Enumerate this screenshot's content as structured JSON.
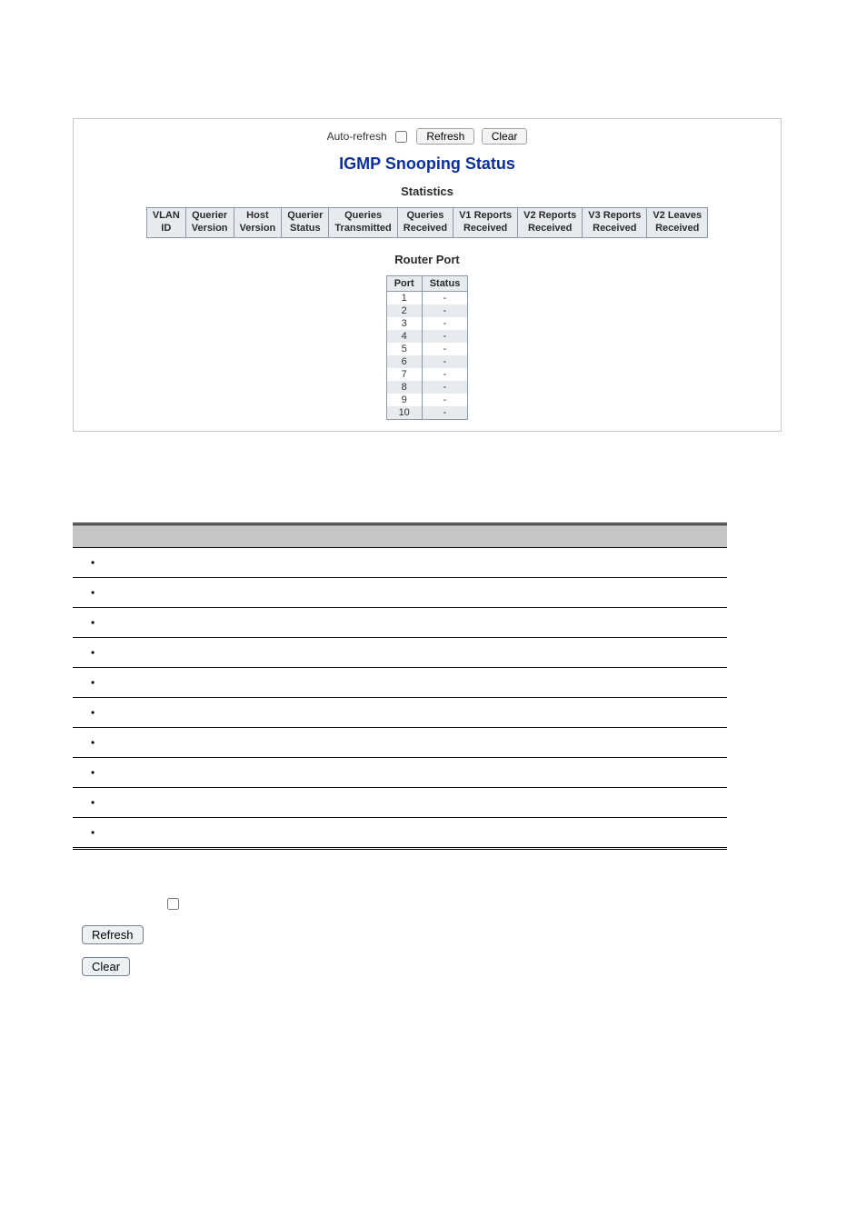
{
  "panel": {
    "auto_refresh_label": "Auto-refresh",
    "refresh_label": "Refresh",
    "clear_label": "Clear",
    "title": "IGMP Snooping Status",
    "stats_label": "Statistics",
    "router_port_label": "Router Port",
    "stats_headers": [
      "VLAN\nID",
      "Querier\nVersion",
      "Host\nVersion",
      "Querier\nStatus",
      "Queries\nTransmitted",
      "Queries\nReceived",
      "V1 Reports\nReceived",
      "V2 Reports\nReceived",
      "V3 Reports\nReceived",
      "V2 Leaves\nReceived"
    ],
    "router_headers": [
      "Port",
      "Status"
    ],
    "router_rows": [
      {
        "port": "1",
        "status": "-"
      },
      {
        "port": "2",
        "status": "-"
      },
      {
        "port": "3",
        "status": "-"
      },
      {
        "port": "4",
        "status": "-"
      },
      {
        "port": "5",
        "status": "-"
      },
      {
        "port": "6",
        "status": "-"
      },
      {
        "port": "7",
        "status": "-"
      },
      {
        "port": "8",
        "status": "-"
      },
      {
        "port": "9",
        "status": "-"
      },
      {
        "port": "10",
        "status": "-"
      }
    ]
  },
  "desc": {
    "headers": [
      "",
      ""
    ],
    "rows": [
      {
        "object": "",
        "descr": ""
      },
      {
        "object": "",
        "descr": ""
      },
      {
        "object": "",
        "descr": ""
      },
      {
        "object": "",
        "descr": ""
      },
      {
        "object": "",
        "descr": ""
      },
      {
        "object": "",
        "descr": ""
      },
      {
        "object": "",
        "descr": ""
      },
      {
        "object": "",
        "descr": ""
      },
      {
        "object": "",
        "descr": ""
      },
      {
        "object": "",
        "descr": ""
      }
    ]
  },
  "below": {
    "refresh_label": "Refresh",
    "clear_label": "Clear"
  }
}
